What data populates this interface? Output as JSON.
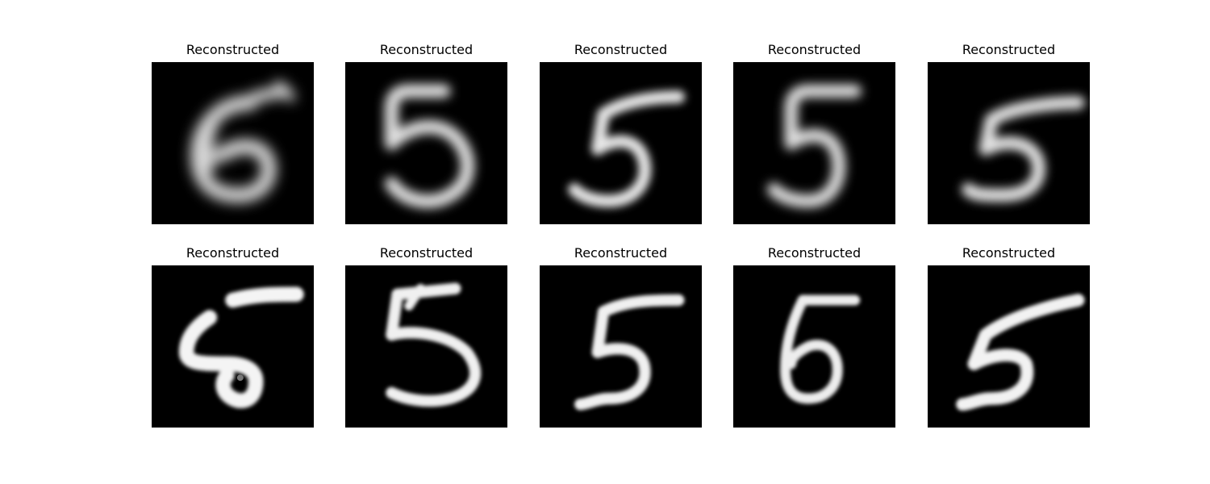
{
  "figure": {
    "background": "#ffffff",
    "image_background": "#000000",
    "stroke_color": "#f4f4f4",
    "panels": [
      {
        "title": "Reconstructed",
        "digit": "6",
        "blur": 2.4,
        "brightness": 0.82
      },
      {
        "title": "Reconstructed",
        "digit": "5",
        "blur": 2.0,
        "brightness": 0.86
      },
      {
        "title": "Reconstructed",
        "digit": "5",
        "blur": 1.7,
        "brightness": 0.9
      },
      {
        "title": "Reconstructed",
        "digit": "5",
        "blur": 2.0,
        "brightness": 0.86
      },
      {
        "title": "Reconstructed",
        "digit": "5",
        "blur": 1.8,
        "brightness": 0.88
      },
      {
        "title": "Reconstructed",
        "digit": "6",
        "blur": 1.0,
        "brightness": 1.0
      },
      {
        "title": "Reconstructed",
        "digit": "5",
        "blur": 1.0,
        "brightness": 0.98
      },
      {
        "title": "Reconstructed",
        "digit": "5",
        "blur": 1.0,
        "brightness": 0.98
      },
      {
        "title": "Reconstructed",
        "digit": "6",
        "blur": 1.0,
        "brightness": 0.96
      },
      {
        "title": "Reconstructed",
        "digit": "5",
        "blur": 1.0,
        "brightness": 0.98
      }
    ]
  }
}
